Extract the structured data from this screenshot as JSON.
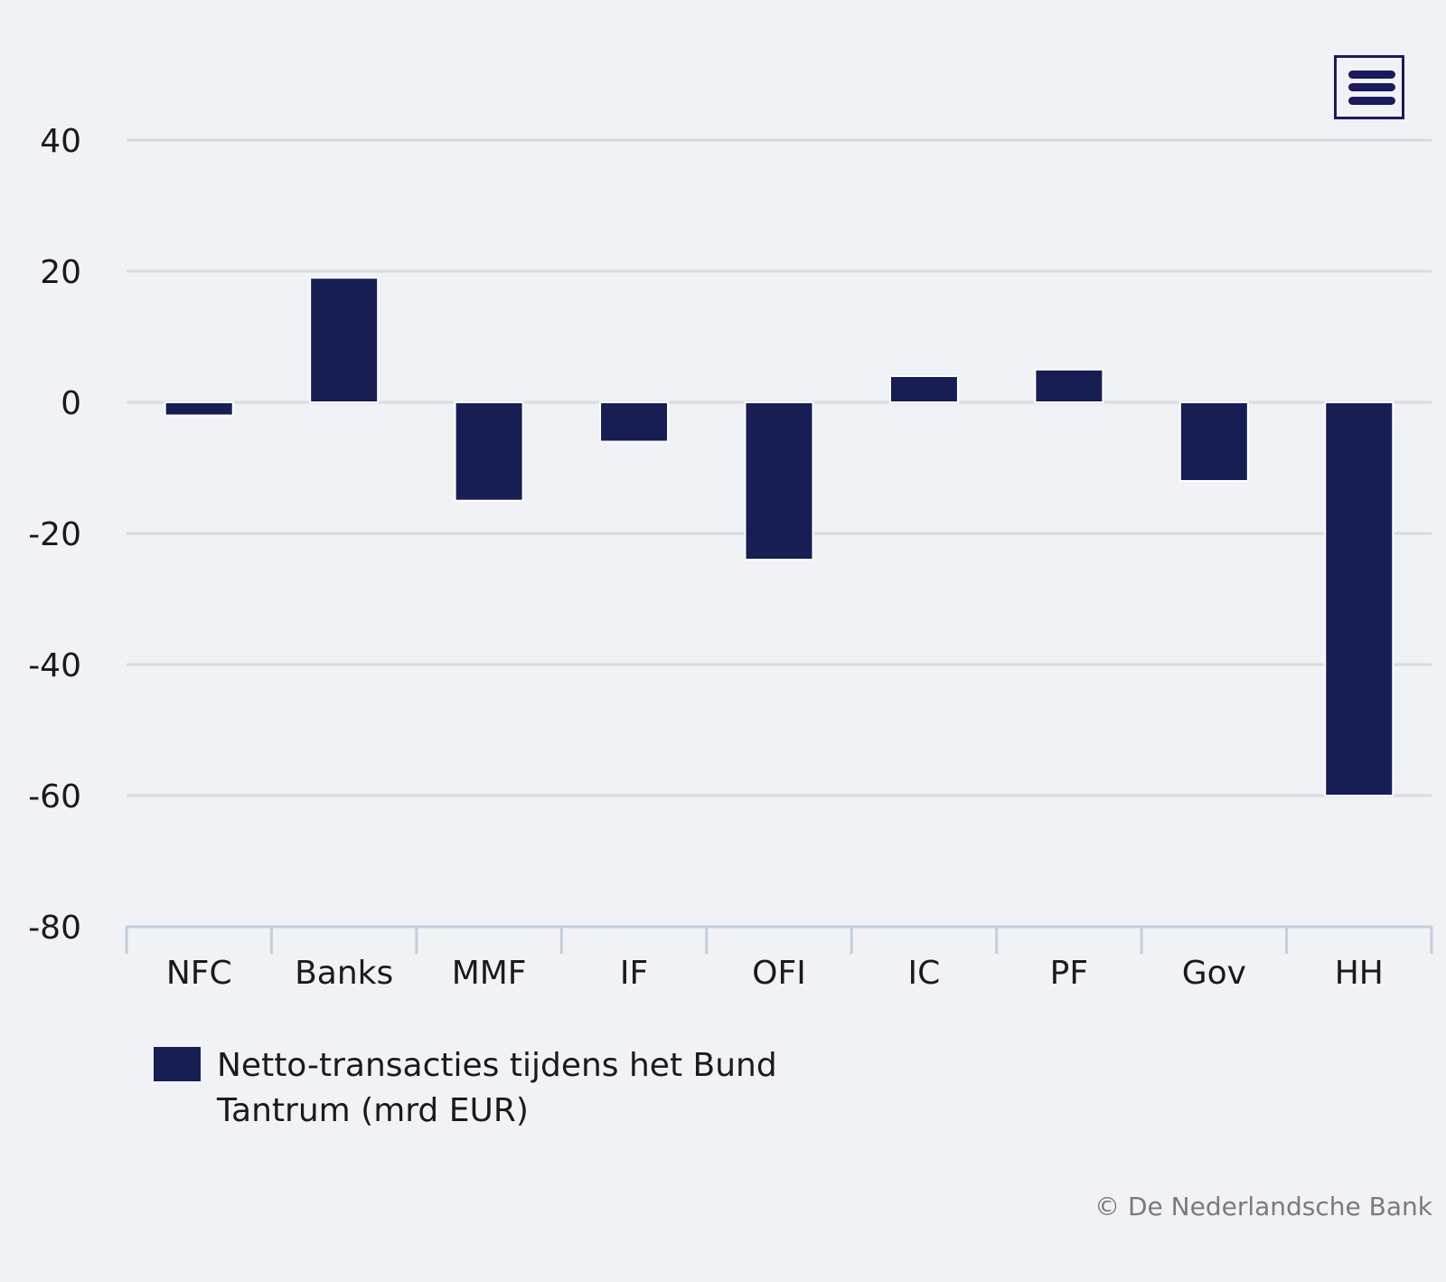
{
  "menu": {
    "icon": "hamburger-menu-icon"
  },
  "chart_data": {
    "type": "bar",
    "categories": [
      "NFC",
      "Banks",
      "MMF",
      "IF",
      "OFI",
      "IC",
      "PF",
      "Gov",
      "HH"
    ],
    "series": [
      {
        "name": "Netto-transacties tijdens het Bund Tantrum (mrd EUR)",
        "values": [
          -2,
          19,
          -15,
          -6,
          -24,
          4,
          5,
          -12,
          -60
        ]
      }
    ],
    "yticks": [
      40,
      20,
      0,
      -20,
      -40,
      -60,
      -80
    ],
    "ylim": [
      -80,
      40
    ],
    "grid": true,
    "legend": "bottom-left",
    "bar_color": "#161e54"
  },
  "credit": "© De Nederlandsche Bank"
}
